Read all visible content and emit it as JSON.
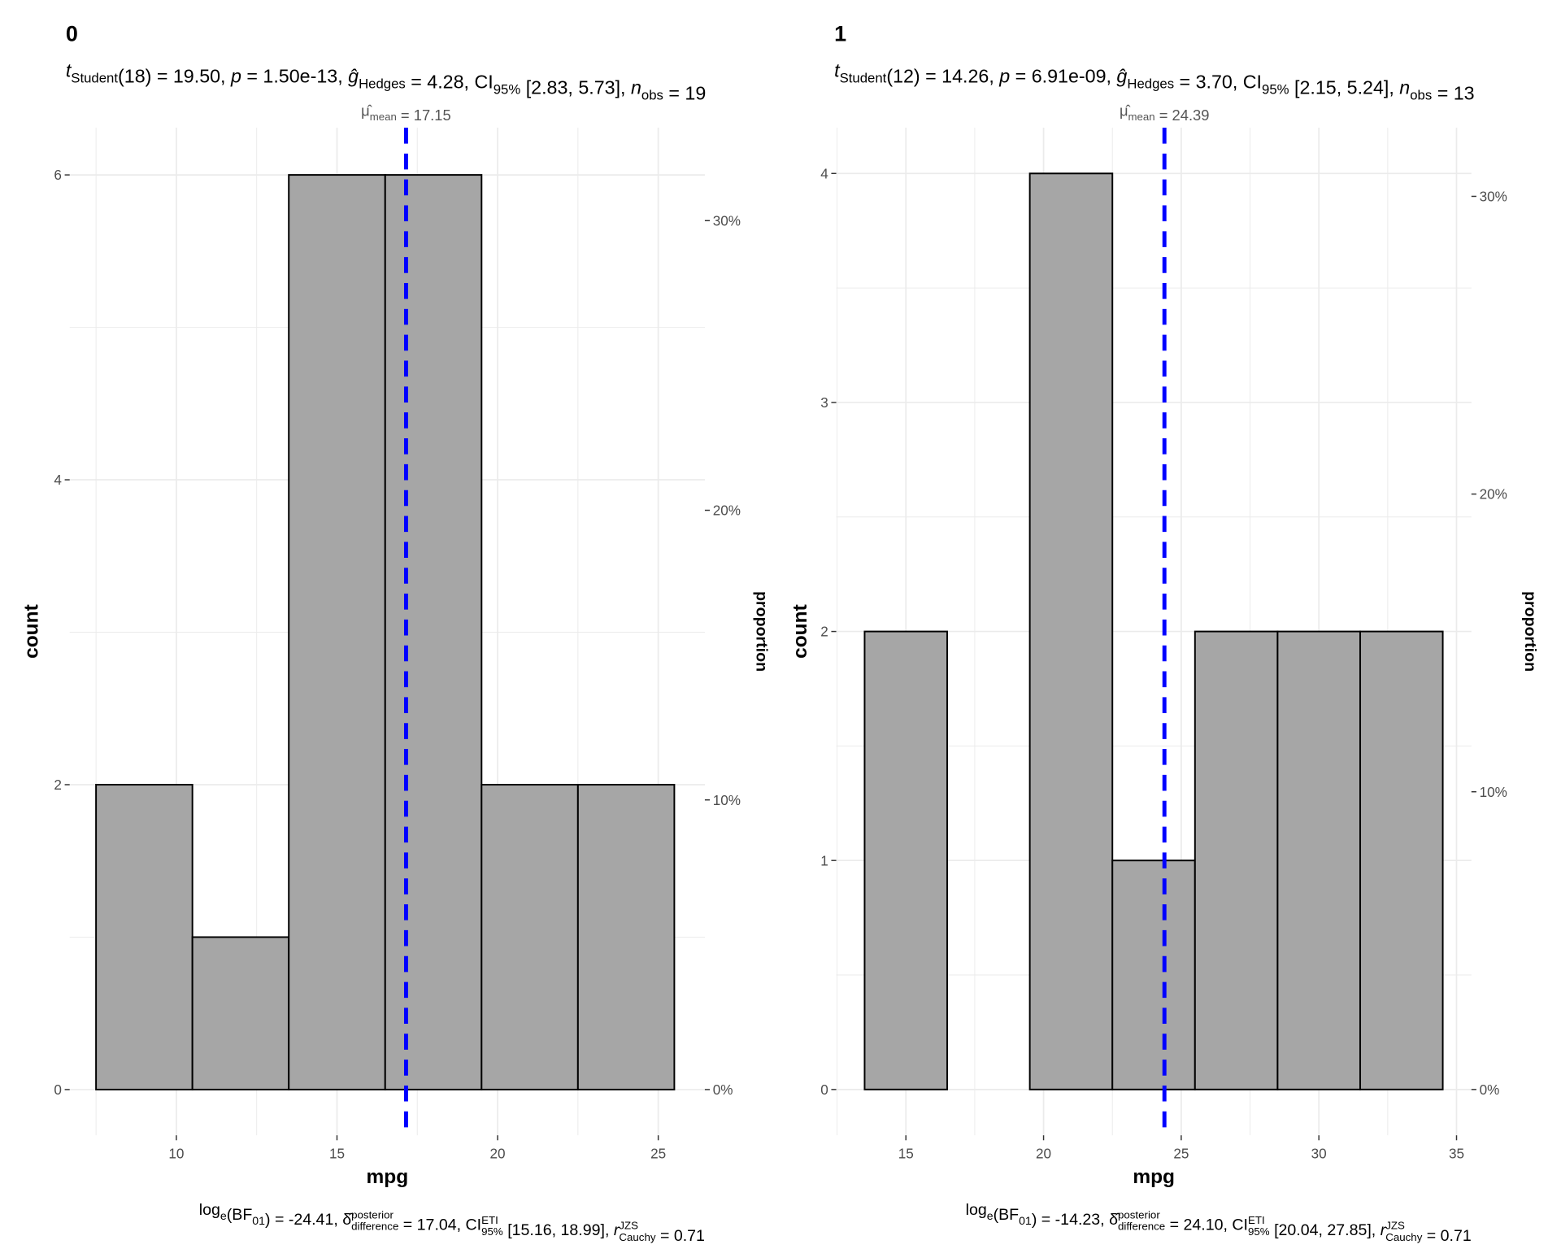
{
  "chart_data": [
    {
      "type": "bar",
      "panel_label": "0",
      "subtitle": [
        [
          "t",
          "i"
        ],
        [
          "Student",
          "sub"
        ],
        [
          "(18) = 19.50, ",
          "n"
        ],
        [
          "p",
          "i"
        ],
        [
          " = 1.50e-13, ",
          "n"
        ],
        [
          "ĝ",
          "i"
        ],
        [
          "Hedges",
          "sub"
        ],
        [
          " = 4.28, CI",
          "n"
        ],
        [
          "95%",
          "sub"
        ],
        [
          " [2.83, 5.73], ",
          "n"
        ],
        [
          "n",
          "i"
        ],
        [
          "obs",
          "sub"
        ],
        [
          " = 19",
          "n"
        ]
      ],
      "mean_label": [
        [
          "μ̂",
          "n"
        ],
        [
          "mean",
          "sub"
        ],
        [
          " = 17.15",
          "n"
        ]
      ],
      "caption": [
        [
          "log",
          "n"
        ],
        [
          "e",
          "sub"
        ],
        [
          "(BF",
          "n"
        ],
        [
          "01",
          "sub"
        ],
        [
          ") = -24.41, ",
          "n"
        ],
        [
          "δ̂",
          "n"
        ],
        [
          [
            "posterior",
            "difference"
          ],
          "supsub"
        ],
        [
          " = 17.04, CI",
          "n"
        ],
        [
          [
            "ETI",
            "95%"
          ],
          "supsub"
        ],
        [
          " [15.16, 18.99], ",
          "n"
        ],
        [
          "r",
          "i"
        ],
        [
          [
            "JZS",
            "Cauchy"
          ],
          "supsub"
        ],
        [
          " = 0.71",
          "n"
        ]
      ],
      "xlabel": "mpg",
      "ylabel": "count",
      "y2label": "proportion",
      "bin_edges": [
        7.5,
        10.5,
        13.5,
        16.5,
        19.5,
        22.5,
        25.5
      ],
      "counts": [
        2,
        1,
        6,
        6,
        2,
        2
      ],
      "n_obs": 19,
      "mean": 17.15,
      "xlim": [
        6.68,
        26.45
      ],
      "ylim": [
        -0.3,
        6.31
      ],
      "xticks": [
        "10",
        "15",
        "20",
        "25"
      ],
      "yticks": [
        "0",
        "2",
        "4",
        "6"
      ],
      "y2ticks": [
        "0%",
        "10%",
        "20%",
        "30%"
      ],
      "grid": true,
      "bar_fill": "#a6a6a6",
      "mean_line_color": "#0000ff"
    },
    {
      "type": "bar",
      "panel_label": "1",
      "subtitle": [
        [
          "t",
          "i"
        ],
        [
          "Student",
          "sub"
        ],
        [
          "(12) = 14.26, ",
          "n"
        ],
        [
          "p",
          "i"
        ],
        [
          " = 6.91e-09, ",
          "n"
        ],
        [
          "ĝ",
          "i"
        ],
        [
          "Hedges",
          "sub"
        ],
        [
          " = 3.70, CI",
          "n"
        ],
        [
          "95%",
          "sub"
        ],
        [
          " [2.15, 5.24], ",
          "n"
        ],
        [
          "n",
          "i"
        ],
        [
          "obs",
          "sub"
        ],
        [
          " = 13",
          "n"
        ]
      ],
      "mean_label": [
        [
          "μ̂",
          "n"
        ],
        [
          "mean",
          "sub"
        ],
        [
          " = 24.39",
          "n"
        ]
      ],
      "caption": [
        [
          "log",
          "n"
        ],
        [
          "e",
          "sub"
        ],
        [
          "(BF",
          "n"
        ],
        [
          "01",
          "sub"
        ],
        [
          ") = -14.23, ",
          "n"
        ],
        [
          "δ̂",
          "n"
        ],
        [
          [
            "posterior",
            "difference"
          ],
          "supsub"
        ],
        [
          " = 24.10, CI",
          "n"
        ],
        [
          [
            "ETI",
            "95%"
          ],
          "supsub"
        ],
        [
          " [20.04, 27.85], ",
          "n"
        ],
        [
          "r",
          "i"
        ],
        [
          [
            "JZS",
            "Cauchy"
          ],
          "supsub"
        ],
        [
          " = 0.71",
          "n"
        ]
      ],
      "xlabel": "mpg",
      "ylabel": "count",
      "y2label": "proportion",
      "bin_edges": [
        13.5,
        16.5,
        19.5,
        22.5,
        25.5,
        28.5,
        31.5,
        34.5
      ],
      "counts": [
        2,
        0,
        4,
        1,
        2,
        2,
        2
      ],
      "n_obs": 13,
      "mean": 24.39,
      "xlim": [
        12.47,
        35.54
      ],
      "ylim": [
        -0.2,
        4.2
      ],
      "xticks": [
        "15",
        "20",
        "25",
        "30",
        "35"
      ],
      "yticks": [
        "0",
        "1",
        "2",
        "3",
        "4"
      ],
      "y2ticks": [
        "0%",
        "10%",
        "20%",
        "30%"
      ],
      "grid": true,
      "bar_fill": "#a6a6a6",
      "mean_line_color": "#0000ff"
    }
  ]
}
